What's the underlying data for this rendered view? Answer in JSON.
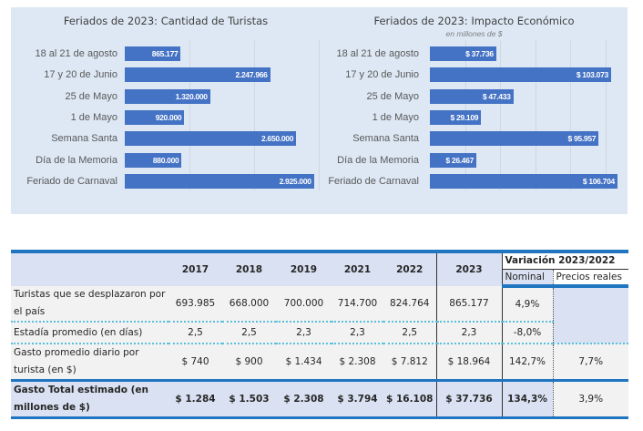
{
  "chart_data": [
    {
      "type": "bar",
      "orientation": "horizontal",
      "title": "Feriados de 2023: Cantidad de Turistas",
      "subtitle": "",
      "categories": [
        "18 al 21 de agosto",
        "17 y 20 de Junio",
        "25 de Mayo",
        "1 de Mayo",
        "Semana Santa",
        "Día de la Memoria",
        "Feriado de Carnaval"
      ],
      "values": [
        865177,
        2247966,
        1320000,
        920000,
        2650000,
        880000,
        2925000
      ],
      "data_labels": [
        "865.177",
        "2.247.966",
        "1.320.000",
        "920.000",
        "2.650.000",
        "880.000",
        "2.925.000"
      ],
      "xlim": [
        0,
        3000000
      ],
      "grid_step": 1000000,
      "grid": true,
      "color": "#4472c4"
    },
    {
      "type": "bar",
      "orientation": "horizontal",
      "title": "Feriados de 2023: Impacto Económico",
      "subtitle": "en millones de $",
      "categories": [
        "18 al 21 de agosto",
        "17 y 20 de Junio",
        "25 de Mayo",
        "1 de Mayo",
        "Semana Santa",
        "Día de la Memoria",
        "Feriado de Carnaval"
      ],
      "values": [
        37736,
        103073,
        47433,
        29109,
        95957,
        26467,
        106704
      ],
      "data_labels": [
        "$ 37.736",
        "$ 103.073",
        "$ 47.433",
        "$ 29.109",
        "$ 95.957",
        "$ 26.467",
        "$ 106.704"
      ],
      "xlim": [
        0,
        110000
      ],
      "grid_step": 20000,
      "grid": true,
      "color": "#4472c4"
    }
  ],
  "table": {
    "years": [
      "2017",
      "2018",
      "2019",
      "2021",
      "2022"
    ],
    "current_year": "2023",
    "variation_header": "Variación 2023/2022",
    "nominal_header": "Nominal",
    "real_header": "Precios reales",
    "rows": [
      {
        "label": "Turistas que se desplazaron por el país",
        "values": [
          "693.985",
          "668.000",
          "700.000",
          "714.700",
          "824.764"
        ],
        "current": "865.177",
        "nominal": "4,9%",
        "real": ""
      },
      {
        "label": "Estadía promedio (en días)",
        "values": [
          "2,5",
          "2,5",
          "2,3",
          "2,3",
          "2,5"
        ],
        "current": "2,3",
        "nominal": "-8,0%",
        "real": ""
      },
      {
        "label": "Gasto promedio diario por turista (en $)",
        "values": [
          "$ 740",
          "$ 900",
          "$ 1.434",
          "$ 2.308",
          "$ 7.812"
        ],
        "current": "$ 18.964",
        "nominal": "142,7%",
        "real": "7,7%"
      },
      {
        "label": "Gasto Total estimado (en millones de $)",
        "values": [
          "$ 1.284",
          "$ 1.503",
          "$ 2.308",
          "$ 3.794",
          "$ 16.108"
        ],
        "current": "$ 37.736",
        "nominal": "134,3%",
        "real": "3,9%"
      }
    ]
  }
}
